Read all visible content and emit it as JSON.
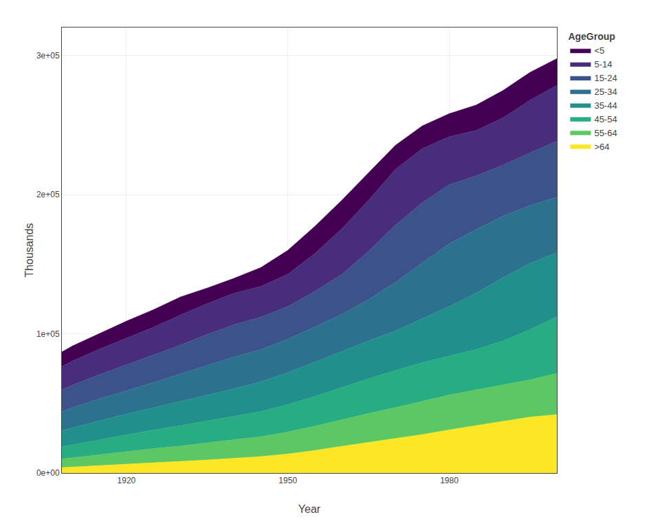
{
  "chart_data": {
    "type": "area",
    "stacked": true,
    "xlabel": "Year",
    "ylabel": "Thousands",
    "legend_title": "AgeGroup",
    "legend": "right",
    "grid": true,
    "x": [
      1908,
      1910,
      1915,
      1920,
      1925,
      1930,
      1935,
      1940,
      1945,
      1950,
      1955,
      1960,
      1965,
      1970,
      1975,
      1980,
      1985,
      1990,
      1995,
      2000
    ],
    "series": [
      {
        "name": ">64",
        "color": "#FDE725",
        "values": [
          3900,
          4300,
          5100,
          6100,
          7200,
          8100,
          9400,
          10600,
          11800,
          13700,
          16200,
          19200,
          22000,
          24700,
          27700,
          31000,
          34200,
          37200,
          40200,
          42000
        ]
      },
      {
        "name": "55-64",
        "color": "#5DC863",
        "values": [
          6200,
          6700,
          7800,
          9100,
          10300,
          11300,
          12400,
          13400,
          14300,
          15800,
          17500,
          19100,
          20800,
          22300,
          24000,
          25100,
          25600,
          26200,
          26700,
          29600
        ]
      },
      {
        "name": "45-54",
        "color": "#27AD81",
        "values": [
          8800,
          9400,
          10900,
          12200,
          13400,
          14600,
          15600,
          16800,
          18100,
          19700,
          21300,
          23000,
          25000,
          26600,
          27600,
          28000,
          29000,
          31500,
          36100,
          40700
        ]
      },
      {
        "name": "35-44",
        "color": "#21908C",
        "values": [
          11600,
          12200,
          13700,
          14900,
          16000,
          17500,
          18700,
          19700,
          21400,
          22900,
          24600,
          25900,
          27100,
          28500,
          31600,
          35500,
          40400,
          45300,
          47600,
          46000
        ]
      },
      {
        "name": "25-34",
        "color": "#2C728E",
        "values": [
          13700,
          14400,
          15800,
          16900,
          18000,
          19700,
          21300,
          22800,
          23200,
          24100,
          25300,
          26700,
          29700,
          34900,
          40100,
          45100,
          45700,
          44500,
          41600,
          39900
        ]
      },
      {
        "name": "15-24",
        "color": "#3B528B",
        "values": [
          15500,
          16200,
          17400,
          18500,
          19600,
          20600,
          22100,
          23200,
          23200,
          23400,
          25500,
          28700,
          34700,
          41100,
          43200,
          42500,
          38500,
          36500,
          37800,
          40200
        ]
      },
      {
        "name": "5-14",
        "color": "#472D7B",
        "values": [
          16800,
          17300,
          18300,
          19200,
          20200,
          21600,
          22200,
          22600,
          22100,
          23200,
          27200,
          32700,
          36600,
          40100,
          38900,
          34400,
          32700,
          34000,
          37800,
          40100
        ]
      },
      {
        "name": "<5",
        "color": "#440154",
        "values": [
          10500,
          10800,
          11200,
          12200,
          12600,
          13000,
          11200,
          10800,
          13500,
          17200,
          19500,
          20500,
          19800,
          17200,
          16300,
          16500,
          18200,
          19600,
          20000,
          19200
        ]
      }
    ],
    "xlim": [
      1908,
      2000
    ],
    "xticks": [
      1920,
      1950,
      1980
    ],
    "ylim": [
      0,
      320000
    ],
    "yticks": [
      {
        "value": 0,
        "label": "0e+00"
      },
      {
        "value": 100000,
        "label": "1e+05"
      },
      {
        "value": 200000,
        "label": "2e+05"
      },
      {
        "value": 300000,
        "label": "3e+05"
      }
    ]
  }
}
